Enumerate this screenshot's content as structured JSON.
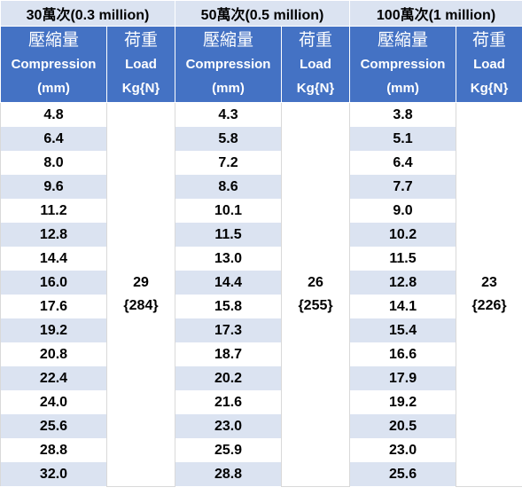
{
  "groups": [
    {
      "title": "30萬次(0.3 million)",
      "compression_label_zh": "壓縮量",
      "compression_label_en": "Compression",
      "compression_unit": "(mm)",
      "load_label_zh": "荷重",
      "load_label_en": "Load",
      "load_unit": "Kg{N}",
      "load_kg": "29",
      "load_n": "{284}",
      "values": [
        "4.8",
        "6.4",
        "8.0",
        "9.6",
        "11.2",
        "12.8",
        "14.4",
        "16.0",
        "17.6",
        "19.2",
        "20.8",
        "22.4",
        "24.0",
        "25.6",
        "28.8",
        "32.0"
      ]
    },
    {
      "title": "50萬次(0.5 million)",
      "compression_label_zh": "壓縮量",
      "compression_label_en": "Compression",
      "compression_unit": "(mm)",
      "load_label_zh": "荷重",
      "load_label_en": "Load",
      "load_unit": "Kg{N}",
      "load_kg": "26",
      "load_n": "{255}",
      "values": [
        "4.3",
        "5.8",
        "7.2",
        "8.6",
        "10.1",
        "11.5",
        "13.0",
        "14.4",
        "15.8",
        "17.3",
        "18.7",
        "20.2",
        "21.6",
        "23.0",
        "25.9",
        "28.8"
      ]
    },
    {
      "title": "100萬次(1 million)",
      "compression_label_zh": "壓縮量",
      "compression_label_en": "Compression",
      "compression_unit": "(mm)",
      "load_label_zh": "荷重",
      "load_label_en": "Load",
      "load_unit": "Kg{N}",
      "load_kg": "23",
      "load_n": "{226}",
      "values": [
        "3.8",
        "5.1",
        "6.4",
        "7.7",
        "9.0",
        "10.2",
        "11.5",
        "12.8",
        "14.1",
        "15.4",
        "16.6",
        "17.9",
        "19.2",
        "20.5",
        "23.0",
        "25.6"
      ]
    }
  ]
}
